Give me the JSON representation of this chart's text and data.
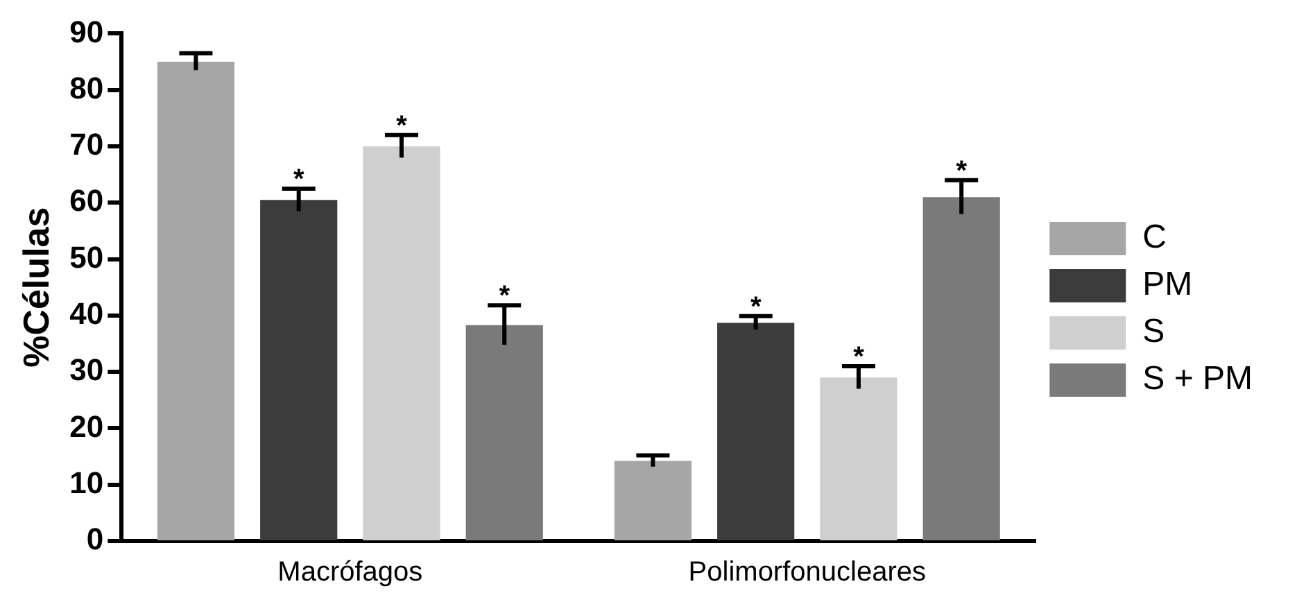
{
  "chart_data": {
    "type": "bar",
    "ylabel": "%Células",
    "categories": [
      "Macrófagos",
      "Polimorfonucleares"
    ],
    "series": [
      {
        "name": "C",
        "color": "#a6a6a6",
        "values": [
          85,
          14.2
        ],
        "errors": [
          1.5,
          1
        ],
        "value_labels": [
          null,
          null
        ]
      },
      {
        "name": "PM",
        "color": "#3c3c3c",
        "values": [
          60.5,
          38.7
        ],
        "errors": [
          2,
          1.2
        ],
        "value_labels": [
          "*",
          "*"
        ]
      },
      {
        "name": "S",
        "color": "#cfcfcf",
        "values": [
          70,
          29
        ],
        "errors": [
          2,
          2
        ],
        "value_labels": [
          "*",
          "*"
        ]
      },
      {
        "name": "S + PM",
        "color": "#7a7a7a",
        "values": [
          38.3,
          61
        ],
        "errors": [
          3.5,
          3
        ],
        "value_labels": [
          "*",
          "*"
        ]
      }
    ],
    "ylim": [
      0,
      90
    ],
    "yticks": [
      0,
      10,
      20,
      30,
      40,
      50,
      60,
      70,
      80,
      90
    ],
    "grid": false,
    "legend": "right"
  }
}
